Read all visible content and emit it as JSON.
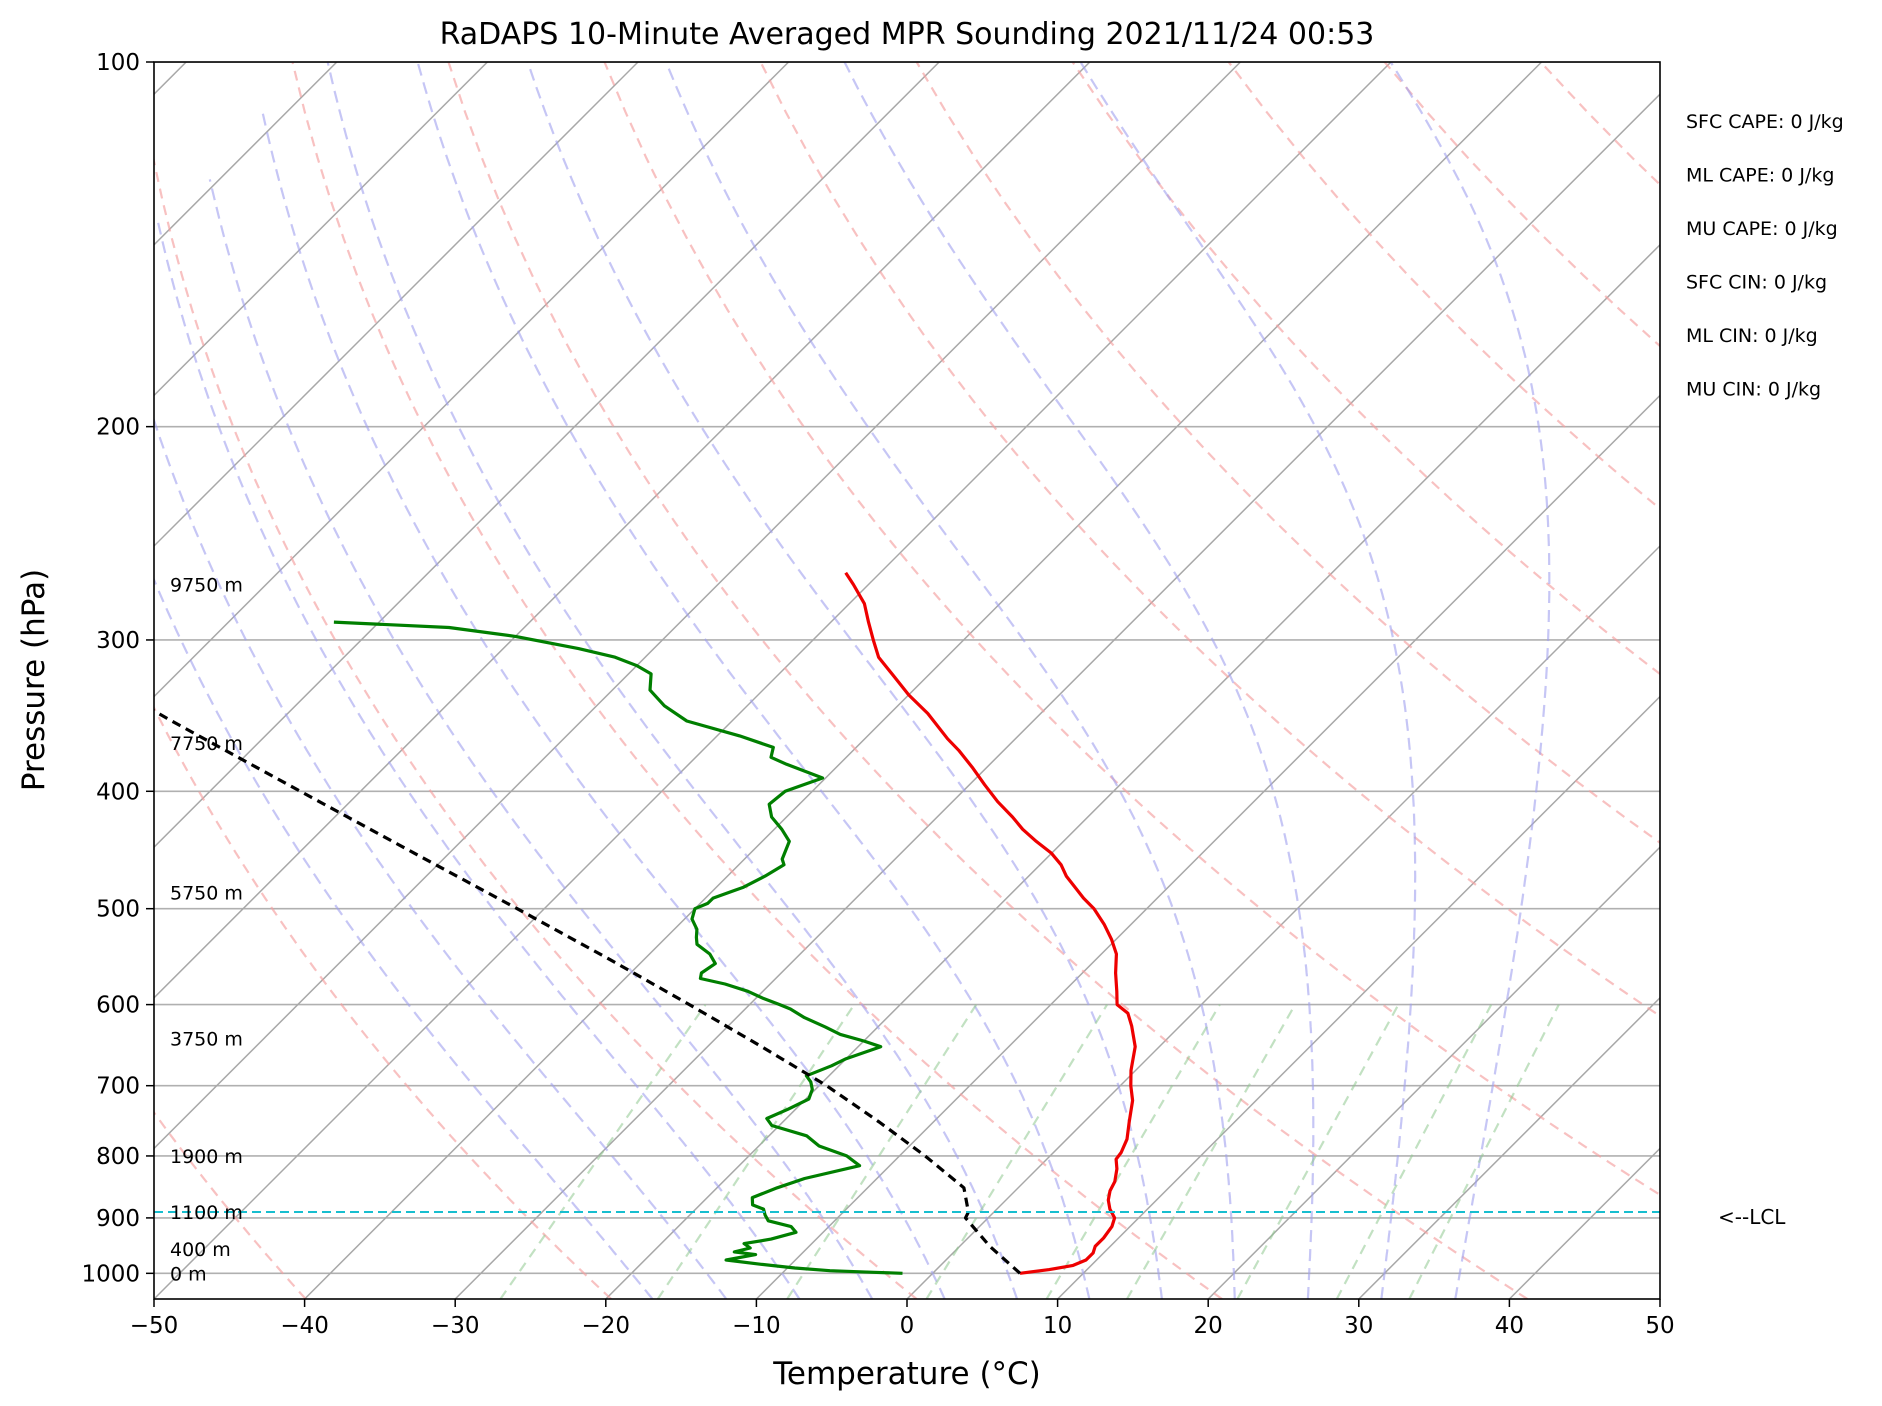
{
  "chart_data": {
    "type": "line",
    "title": "RaDAPS 10-Minute Averaged MPR Sounding 2021/11/24 00:53",
    "xlabel": "Temperature (°C)",
    "ylabel": "Pressure (hPa)",
    "xlim": [
      -50,
      50
    ],
    "ylim": [
      1050,
      100
    ],
    "y_scale": "log",
    "skew": "skew-T",
    "grid": true,
    "x_ticks": [
      -50,
      -40,
      -30,
      -20,
      -10,
      0,
      10,
      20,
      30,
      40,
      50
    ],
    "x_tick_labels": [
      "−50",
      "−40",
      "−30",
      "−20",
      "−10",
      "0",
      "10",
      "20",
      "30",
      "40",
      "50"
    ],
    "y_ticks": [
      100,
      200,
      300,
      400,
      500,
      600,
      700,
      800,
      900,
      1000
    ],
    "y_tick_labels": [
      "100",
      "200",
      "300",
      "400",
      "500",
      "600",
      "700",
      "800",
      "900",
      "1000"
    ],
    "height_labels": [
      {
        "p": 1000,
        "text": "0 m"
      },
      {
        "p": 955,
        "text": "400 m"
      },
      {
        "p": 890,
        "text": "1100 m"
      },
      {
        "p": 800,
        "text": "1900 m"
      },
      {
        "p": 640,
        "text": "3750 m"
      },
      {
        "p": 485,
        "text": "5750 m"
      },
      {
        "p": 365,
        "text": "7750 m"
      },
      {
        "p": 270,
        "text": "9750 m"
      }
    ],
    "lcl": {
      "p": 890,
      "label": "<--LCL",
      "color": "#17becf"
    },
    "stats": [
      "SFC CAPE: 0 J/kg",
      "ML CAPE: 0 J/kg",
      "MU CAPE: 0 J/kg",
      "SFC CIN: 0 J/kg",
      "ML CIN: 0 J/kg",
      "MU CIN: 0 J/kg"
    ],
    "dry_adiabats_theta_K": [
      210,
      230,
      250,
      270,
      290,
      310,
      330,
      350,
      370,
      390,
      410,
      430,
      450
    ],
    "moist_adiabats_T1000_C": [
      -20,
      -15,
      -10,
      -5,
      0,
      5,
      10,
      15,
      20,
      25,
      30,
      35
    ],
    "mixing_ratios_gkg": [
      0.4,
      1,
      2,
      4,
      7,
      10,
      16,
      24,
      32
    ],
    "series": [
      {
        "name": "temperature",
        "color": "#ee0000",
        "points": [
          [
            5.8,
            1000
          ],
          [
            7.5,
            993
          ],
          [
            8.8,
            985
          ],
          [
            9.3,
            975
          ],
          [
            9.3,
            962
          ],
          [
            9.0,
            950
          ],
          [
            9.0,
            935
          ],
          [
            8.8,
            915
          ],
          [
            8.4,
            900
          ],
          [
            7.5,
            885
          ],
          [
            6.8,
            870
          ],
          [
            6.3,
            855
          ],
          [
            6.0,
            840
          ],
          [
            5.3,
            820
          ],
          [
            4.6,
            805
          ],
          [
            4.5,
            795
          ],
          [
            4.0,
            775
          ],
          [
            3.0,
            750
          ],
          [
            1.8,
            720
          ],
          [
            0.7,
            700
          ],
          [
            -0.3,
            680
          ],
          [
            -1.6,
            650
          ],
          [
            -3.2,
            625
          ],
          [
            -4.3,
            610
          ],
          [
            -5.6,
            600
          ],
          [
            -6.5,
            585
          ],
          [
            -7.8,
            565
          ],
          [
            -9.0,
            545
          ],
          [
            -10.3,
            530
          ],
          [
            -11.8,
            515
          ],
          [
            -13.5,
            500
          ],
          [
            -14.9,
            490
          ],
          [
            -17.5,
            470
          ],
          [
            -18.6,
            460
          ],
          [
            -20.0,
            450
          ],
          [
            -21.8,
            440
          ],
          [
            -23.5,
            430
          ],
          [
            -25.0,
            420
          ],
          [
            -27.0,
            408
          ],
          [
            -29.0,
            395
          ],
          [
            -31.0,
            382
          ],
          [
            -33.0,
            370
          ],
          [
            -34.5,
            362
          ],
          [
            -37.5,
            345
          ],
          [
            -40.0,
            333
          ],
          [
            -42.5,
            320
          ],
          [
            -44.5,
            310
          ],
          [
            -46.0,
            300
          ],
          [
            -47.5,
            290
          ],
          [
            -49.0,
            280
          ],
          [
            -51.0,
            270
          ],
          [
            -52.3,
            264
          ]
        ]
      },
      {
        "name": "dewpoint",
        "color": "#007f00",
        "points": [
          [
            -2.0,
            1000
          ],
          [
            -4.0,
            998
          ],
          [
            -7.0,
            995
          ],
          [
            -9.5,
            990
          ],
          [
            -12.0,
            983
          ],
          [
            -14.6,
            975
          ],
          [
            -13.0,
            965
          ],
          [
            -14.6,
            960
          ],
          [
            -13.8,
            953
          ],
          [
            -14.5,
            945
          ],
          [
            -13.0,
            937
          ],
          [
            -11.8,
            925
          ],
          [
            -12.5,
            915
          ],
          [
            -14.4,
            905
          ],
          [
            -15.0,
            895
          ],
          [
            -15.5,
            885
          ],
          [
            -16.5,
            878
          ],
          [
            -17.0,
            866
          ],
          [
            -16.0,
            850
          ],
          [
            -14.8,
            835
          ],
          [
            -12.0,
            815
          ],
          [
            -13.5,
            800
          ],
          [
            -16.0,
            785
          ],
          [
            -17.5,
            770
          ],
          [
            -20.5,
            755
          ],
          [
            -21.3,
            745
          ],
          [
            -20.5,
            732
          ],
          [
            -19.8,
            718
          ],
          [
            -20.2,
            705
          ],
          [
            -20.8,
            695
          ],
          [
            -21.5,
            687
          ],
          [
            -20.5,
            674
          ],
          [
            -20.0,
            665
          ],
          [
            -18.5,
            650
          ],
          [
            -20.0,
            643
          ],
          [
            -22.0,
            635
          ],
          [
            -23.5,
            626
          ],
          [
            -25.5,
            615
          ],
          [
            -27.0,
            605
          ],
          [
            -28.0,
            600
          ],
          [
            -29.5,
            593
          ],
          [
            -31.0,
            585
          ],
          [
            -33.0,
            577
          ],
          [
            -35.0,
            571
          ],
          [
            -35.3,
            565
          ],
          [
            -35.0,
            555
          ],
          [
            -36.0,
            545
          ],
          [
            -37.5,
            535
          ],
          [
            -38.0,
            528
          ],
          [
            -38.5,
            520
          ],
          [
            -39.5,
            510
          ],
          [
            -40.0,
            500
          ],
          [
            -39.5,
            495
          ],
          [
            -39.5,
            490
          ],
          [
            -38.2,
            480
          ],
          [
            -37.5,
            470
          ],
          [
            -37.0,
            460
          ],
          [
            -37.5,
            455
          ],
          [
            -38.2,
            440
          ],
          [
            -39.5,
            430
          ],
          [
            -41.0,
            420
          ],
          [
            -42.0,
            410
          ],
          [
            -41.8,
            400
          ],
          [
            -40.2,
            390
          ],
          [
            -43.5,
            380
          ],
          [
            -45.0,
            375
          ],
          [
            -45.5,
            368
          ],
          [
            -48.5,
            360
          ],
          [
            -53.0,
            350
          ],
          [
            -55.5,
            340
          ],
          [
            -57.5,
            330
          ],
          [
            -58.5,
            320
          ],
          [
            -60.0,
            315
          ],
          [
            -62.0,
            310
          ],
          [
            -65.0,
            305
          ],
          [
            -70.0,
            298
          ],
          [
            -75.0,
            293
          ],
          [
            -83.0,
            290
          ]
        ]
      },
      {
        "name": "parcel",
        "color": "#000000",
        "style": "dashed",
        "points": [
          [
            5.8,
            1000
          ],
          [
            2.0,
            950
          ],
          [
            -1.5,
            900
          ],
          [
            -1.7,
            890
          ],
          [
            -3.6,
            850
          ],
          [
            -8.3,
            800
          ],
          [
            -13.6,
            750
          ],
          [
            -19.5,
            700
          ],
          [
            -26.4,
            650
          ],
          [
            -34.0,
            600
          ],
          [
            -42.4,
            550
          ],
          [
            -51.8,
            500
          ],
          [
            -62.3,
            450
          ],
          [
            -74.0,
            400
          ],
          [
            -87.2,
            350
          ],
          [
            -102.0,
            300
          ],
          [
            -111.0,
            275
          ],
          [
            -113.0,
            270
          ]
        ]
      }
    ]
  }
}
